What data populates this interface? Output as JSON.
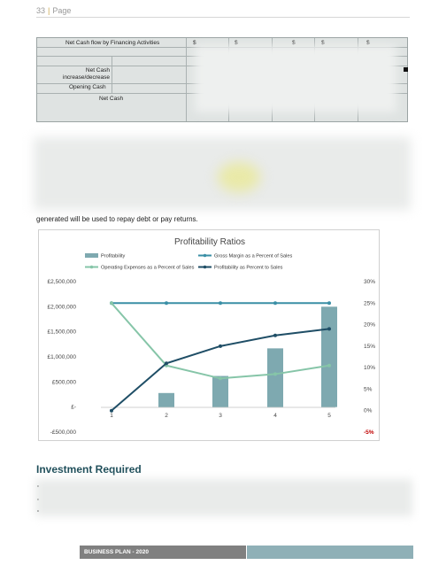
{
  "header": {
    "page_number": "33",
    "separator": "|",
    "page_word": "Page"
  },
  "cashflow_table": {
    "net_cash_financing_label": "Net Cash flow by Financing Activities",
    "currency_symbols": [
      "$",
      "$",
      "$",
      "$",
      "$"
    ],
    "net_cash_change_label": "Net Cash increase/decrease",
    "opening_cash_label": "Opening Cash",
    "net_cash_label": "Net Cash"
  },
  "body_text": "generated will be used to repay debt or pay returns.",
  "chart_data": {
    "type": "bar",
    "title": "Profitability Ratios",
    "categories": [
      "1",
      "2",
      "3",
      "4",
      "5"
    ],
    "left_axis": {
      "ylim": [
        -500000,
        2500000
      ],
      "ticks": [
        "£2,500,000",
        "£2,000,000",
        "£1,500,000",
        "£1,000,000",
        "£500,000",
        "£-",
        "-£500,000"
      ]
    },
    "right_axis": {
      "ylim": [
        -5,
        30
      ],
      "ticks": [
        "30%",
        "25%",
        "20%",
        "15%",
        "10%",
        "5%",
        "0%",
        "-5%"
      ]
    },
    "series": [
      {
        "name": "Profitability",
        "kind": "bar",
        "axis": "left",
        "values": [
          0,
          280000,
          620000,
          1170000,
          2000000
        ],
        "color": "#7ea9b0"
      },
      {
        "name": "Gross Margin as a Percent of Sales",
        "kind": "line",
        "axis": "right",
        "values": [
          25,
          25,
          25,
          25,
          25
        ],
        "color": "#3a8fa6"
      },
      {
        "name": "Operating Expenses as a Percent of Sales",
        "kind": "line",
        "axis": "right",
        "values": [
          25,
          10.5,
          7.5,
          8.5,
          10.5
        ],
        "color": "#86c5a8"
      },
      {
        "name": "Profitability as Percent to Sales",
        "kind": "line",
        "axis": "right",
        "values": [
          0,
          11,
          15,
          17.5,
          19
        ],
        "color": "#1f4e66"
      }
    ],
    "legend_position": "top",
    "grid": false
  },
  "section_heading": "Investment Required",
  "footer": {
    "label": "BUSINESS PLAN - 2020"
  },
  "colors": {
    "heading": "#1f4e5a",
    "footer_dark": "#808080",
    "footer_accent": "#8fb0b7",
    "negative": "#c00000"
  }
}
